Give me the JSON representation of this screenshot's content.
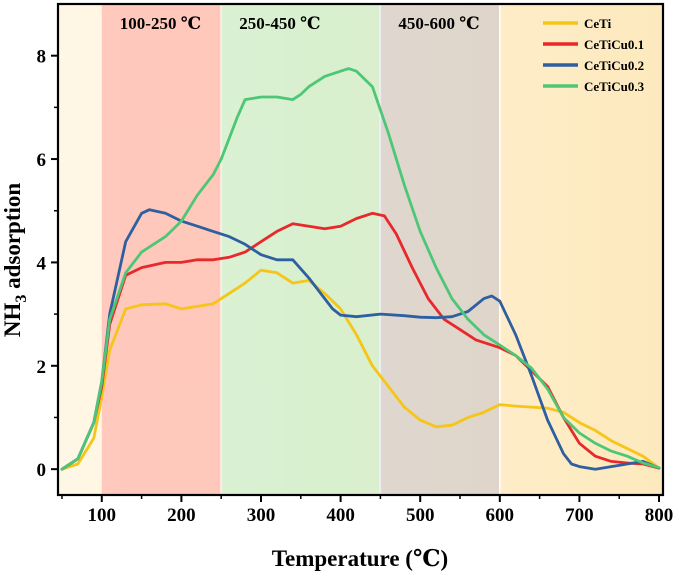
{
  "chart_data": {
    "type": "line",
    "title": "",
    "xlabel": "Temperature (℃)",
    "ylabel_main": "NH",
    "ylabel_sub": "3",
    "ylabel_rest": " adsorption",
    "xlim": [
      45,
      805
    ],
    "ylim": [
      -0.5,
      9.0
    ],
    "xticks": [
      100,
      200,
      300,
      400,
      500,
      600,
      700,
      800
    ],
    "yticks": [
      0,
      2,
      4,
      6,
      8
    ],
    "grid": false,
    "legend_position": "top-right",
    "bands": [
      {
        "label": "100-250 ℃",
        "x0": 100,
        "x1": 250,
        "color": "#ff8a8a"
      },
      {
        "label": "250-450 ℃",
        "x0": 250,
        "x1": 450,
        "color": "#a8eec8"
      },
      {
        "label": "450-600 ℃",
        "x0": 450,
        "x1": 600,
        "color": "#b4b4cc"
      }
    ],
    "series": [
      {
        "name": "CeTi",
        "color": "#f5c518",
        "x": [
          50,
          70,
          90,
          100,
          110,
          130,
          150,
          180,
          200,
          220,
          240,
          260,
          280,
          300,
          320,
          340,
          360,
          380,
          400,
          420,
          440,
          460,
          480,
          500,
          520,
          540,
          560,
          580,
          600,
          620,
          640,
          660,
          680,
          700,
          720,
          740,
          760,
          780,
          800
        ],
        "y": [
          0,
          0.1,
          0.6,
          1.4,
          2.3,
          3.1,
          3.18,
          3.2,
          3.1,
          3.15,
          3.2,
          3.4,
          3.6,
          3.85,
          3.8,
          3.6,
          3.65,
          3.4,
          3.1,
          2.6,
          2.0,
          1.6,
          1.2,
          0.95,
          0.82,
          0.85,
          1.0,
          1.1,
          1.25,
          1.22,
          1.2,
          1.18,
          1.1,
          0.9,
          0.75,
          0.55,
          0.4,
          0.25,
          0.02
        ]
      },
      {
        "name": "CeTiCu0.1",
        "color": "#e8282a",
        "x": [
          50,
          70,
          90,
          100,
          110,
          130,
          150,
          180,
          200,
          220,
          240,
          260,
          280,
          300,
          320,
          340,
          360,
          380,
          400,
          420,
          440,
          455,
          470,
          490,
          510,
          530,
          550,
          570,
          590,
          600,
          620,
          640,
          660,
          680,
          700,
          720,
          740,
          760,
          780,
          800
        ],
        "y": [
          0,
          0.2,
          0.9,
          1.6,
          2.8,
          3.75,
          3.9,
          4.0,
          4.0,
          4.05,
          4.05,
          4.1,
          4.2,
          4.4,
          4.6,
          4.75,
          4.7,
          4.65,
          4.7,
          4.85,
          4.95,
          4.9,
          4.55,
          3.9,
          3.3,
          2.9,
          2.7,
          2.5,
          2.4,
          2.35,
          2.2,
          1.9,
          1.6,
          1.0,
          0.5,
          0.25,
          0.15,
          0.12,
          0.1,
          0.02
        ]
      },
      {
        "name": "CeTiCu0.2",
        "color": "#2e5fa0",
        "x": [
          50,
          70,
          90,
          100,
          110,
          130,
          150,
          160,
          180,
          200,
          220,
          240,
          260,
          280,
          300,
          320,
          340,
          360,
          380,
          390,
          400,
          420,
          450,
          480,
          500,
          520,
          540,
          560,
          580,
          590,
          600,
          620,
          640,
          660,
          680,
          690,
          700,
          720,
          740,
          760,
          780,
          800
        ],
        "y": [
          0,
          0.2,
          0.9,
          1.7,
          3.0,
          4.4,
          4.95,
          5.02,
          4.95,
          4.8,
          4.7,
          4.6,
          4.5,
          4.35,
          4.15,
          4.05,
          4.05,
          3.7,
          3.3,
          3.1,
          2.98,
          2.95,
          3.0,
          2.97,
          2.94,
          2.93,
          2.95,
          3.05,
          3.3,
          3.35,
          3.25,
          2.6,
          1.8,
          0.95,
          0.3,
          0.1,
          0.05,
          0.0,
          0.05,
          0.1,
          0.15,
          0.02
        ]
      },
      {
        "name": "CeTiCu0.3",
        "color": "#4dc776",
        "x": [
          50,
          70,
          90,
          100,
          110,
          130,
          150,
          180,
          200,
          220,
          240,
          250,
          260,
          270,
          280,
          300,
          320,
          340,
          350,
          360,
          380,
          400,
          410,
          420,
          440,
          460,
          480,
          500,
          520,
          540,
          560,
          580,
          600,
          620,
          640,
          660,
          680,
          700,
          720,
          740,
          760,
          780,
          800
        ],
        "y": [
          0,
          0.2,
          0.9,
          1.7,
          2.9,
          3.8,
          4.2,
          4.5,
          4.8,
          5.3,
          5.7,
          6.0,
          6.4,
          6.8,
          7.15,
          7.2,
          7.2,
          7.15,
          7.25,
          7.4,
          7.6,
          7.7,
          7.75,
          7.7,
          7.4,
          6.5,
          5.5,
          4.6,
          3.9,
          3.3,
          2.9,
          2.6,
          2.4,
          2.2,
          1.95,
          1.55,
          1.0,
          0.7,
          0.5,
          0.35,
          0.25,
          0.12,
          0.03
        ]
      }
    ]
  }
}
